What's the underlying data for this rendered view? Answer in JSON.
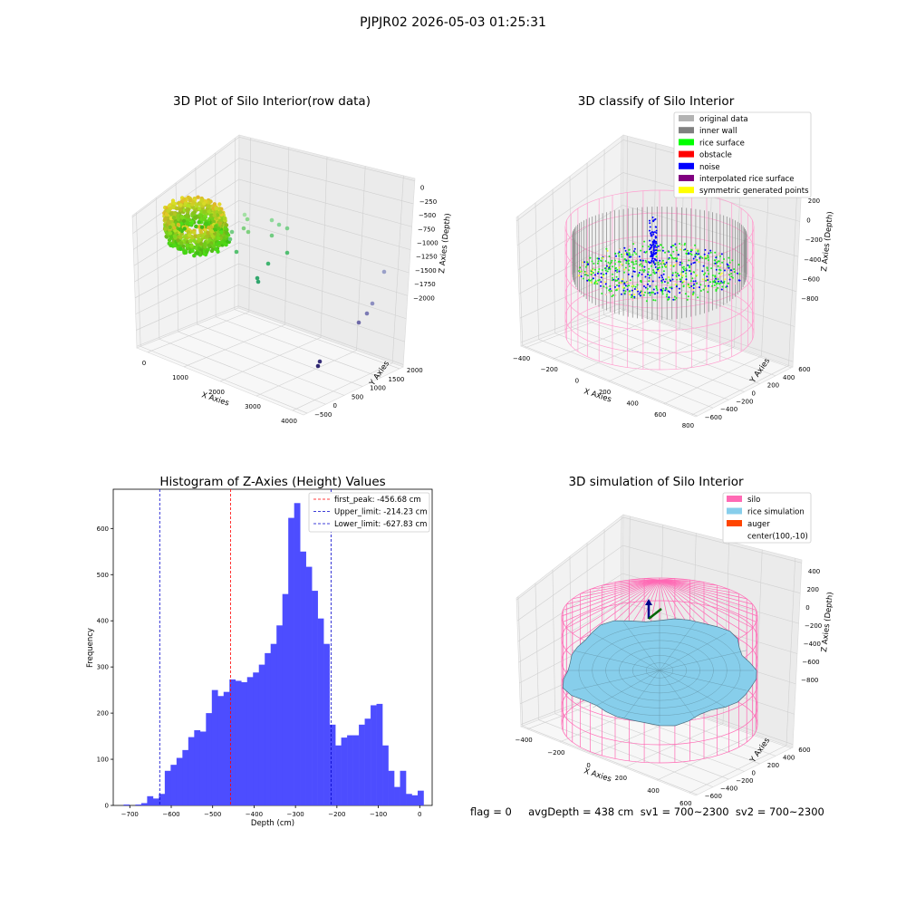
{
  "suptitle": "PJPJR02 2026-05-03 01:25:31",
  "status_text": "flag = 0     avgDepth = 438 cm  sv1 = 700~2300  sv2 = 700~2300",
  "colors": {
    "histogram": "#4d4dff",
    "first_peak_line": "#ff0000",
    "limit_lines": "#0000cc",
    "silo": "#ff69b4",
    "rice_simulation": "#87ceeb",
    "auger": "#ff4500"
  },
  "chart_data": [
    {
      "type": "scatter",
      "title": "3D Plot of Silo Interior(row data)",
      "xlabel": "X Axies",
      "ylabel": "Y Axies",
      "zlabel": "Z Axies (Depth)",
      "x_ticks": [
        "0",
        "1000",
        "2000",
        "3000",
        "4000"
      ],
      "y_ticks": [
        "−500",
        "0",
        "500",
        "1000",
        "1500",
        "2000"
      ],
      "z_ticks": [
        "0",
        "−250",
        "−500",
        "−750",
        "−1000",
        "−1250",
        "−1500",
        "−1750",
        "−2000"
      ]
    },
    {
      "type": "scatter",
      "title": "3D classify of Silo Interior",
      "xlabel": "X Axies",
      "ylabel": "Y Axies",
      "zlabel": "Z Axies (Depth)",
      "x_ticks": [
        "−400",
        "−200",
        "0",
        "200",
        "400",
        "600",
        "800"
      ],
      "y_ticks": [
        "−600",
        "−400",
        "−200",
        "0",
        "200",
        "400",
        "600"
      ],
      "z_ticks": [
        "200",
        "0",
        "−200",
        "−400",
        "−600",
        "−800"
      ],
      "legend": [
        {
          "label": "original data",
          "color": "#b3b3b3"
        },
        {
          "label": "inner wall",
          "color": "#808080"
        },
        {
          "label": "rice surface",
          "color": "#00ff00"
        },
        {
          "label": "obstacle",
          "color": "#ff0000"
        },
        {
          "label": "noise",
          "color": "#0000ff"
        },
        {
          "label": "interpolated rice surface",
          "color": "#800080"
        },
        {
          "label": "symmetric generated points",
          "color": "#ffff00"
        }
      ]
    },
    {
      "type": "bar",
      "title": "Histogram of Z-Axies (Height) Values",
      "xlabel": "Depth (cm)",
      "ylabel": "Frequency",
      "xlim": [
        -740,
        30
      ],
      "ylim": [
        0,
        685
      ],
      "x_ticks": [
        -700,
        -600,
        -500,
        -400,
        -300,
        -200,
        -100,
        0
      ],
      "x_tick_labels": [
        "−700",
        "−600",
        "−500",
        "−400",
        "−300",
        "−200",
        "−100",
        "0"
      ],
      "y_ticks": [
        0,
        100,
        200,
        300,
        400,
        500,
        600
      ],
      "bin_start": -715,
      "bin_width": 14.2,
      "values": [
        2,
        0,
        2,
        5,
        20,
        15,
        25,
        75,
        88,
        103,
        120,
        148,
        163,
        160,
        200,
        250,
        237,
        246,
        273,
        270,
        267,
        278,
        288,
        305,
        330,
        350,
        390,
        458,
        623,
        655,
        550,
        517,
        465,
        405,
        350,
        175,
        130,
        147,
        152,
        152,
        175,
        188,
        217,
        220,
        130,
        75,
        40,
        75,
        25,
        22,
        32
      ],
      "vlines": [
        {
          "x": -456.68,
          "label": "first_peak: -456.68 cm",
          "color": "#ff0000"
        },
        {
          "x": -214.23,
          "label": "Upper_limit: -214.23 cm",
          "color": "#0000cc"
        },
        {
          "x": -627.83,
          "label": "Lower_limit: -627.83 cm",
          "color": "#0000cc"
        }
      ],
      "legend_position": "top-right"
    },
    {
      "type": "surface",
      "title": "3D simulation of Silo Interior",
      "xlabel": "X Axies",
      "ylabel": "Y Axies",
      "zlabel": "Z Axies (Depth)",
      "x_ticks": [
        "−400",
        "−200",
        "0",
        "200",
        "400",
        "600"
      ],
      "y_ticks": [
        "−600",
        "−400",
        "−200",
        "0",
        "200",
        "400",
        "600"
      ],
      "z_ticks": [
        "400",
        "200",
        "0",
        "−200",
        "−400",
        "−600",
        "−800"
      ],
      "legend": [
        {
          "label": "silo",
          "color": "#ff69b4"
        },
        {
          "label": "rice simulation",
          "color": "#87ceeb"
        },
        {
          "label": "auger",
          "color": "#ff4500"
        },
        {
          "label": "center(100,-10)",
          "color": ""
        }
      ]
    }
  ]
}
